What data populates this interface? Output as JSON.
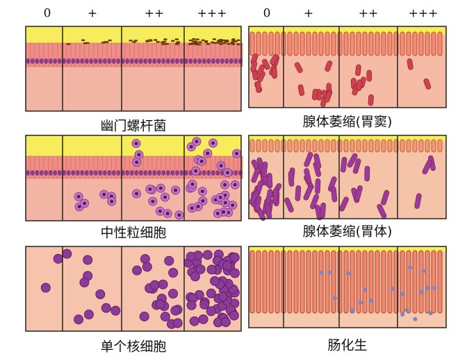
{
  "left_column": {
    "header": [
      "0",
      "+",
      "++",
      "+++"
    ],
    "panels": [
      {
        "caption": "幽门螺杆菌"
      },
      {
        "caption": "中性粒细胞"
      },
      {
        "caption": "单个核细胞"
      }
    ]
  },
  "right_column": {
    "header": [
      "0",
      "+",
      "++",
      "+++"
    ],
    "panels": [
      {
        "caption": "腺体萎缩(胃窦)"
      },
      {
        "caption": "腺体萎缩(胃体)"
      },
      {
        "caption": "肠化生"
      }
    ]
  }
}
